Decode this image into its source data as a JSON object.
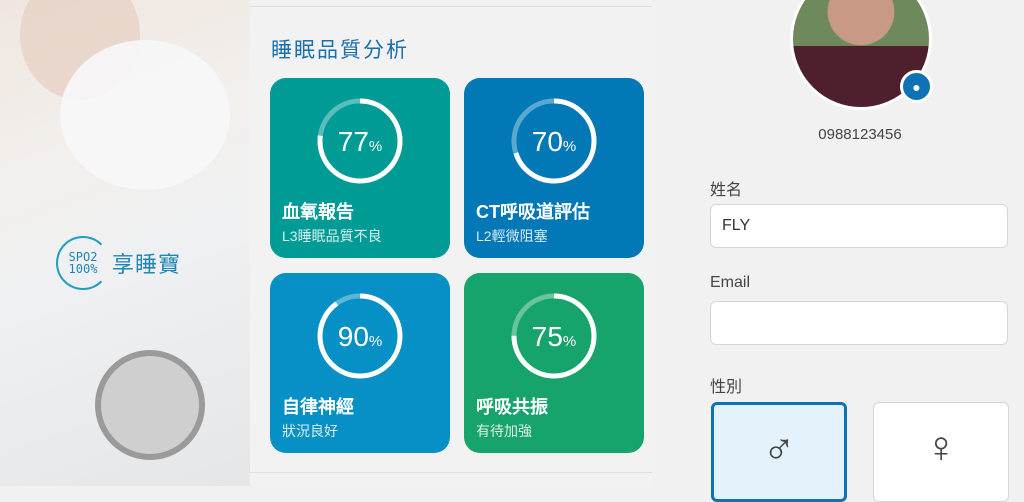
{
  "brand": {
    "logo_line1": "SPO2",
    "logo_line2": "100%",
    "name": "享睡寶"
  },
  "analysis": {
    "title": "睡眠品質分析",
    "cards": [
      {
        "percent": 77,
        "unit": "%",
        "name": "血氧報告",
        "status": "L3睡眠品質不良",
        "color": "#009b95"
      },
      {
        "percent": 70,
        "unit": "%",
        "name": "CT呼吸道評估",
        "status": "L2輕微阻塞",
        "color": "#0278b7"
      },
      {
        "percent": 90,
        "unit": "%",
        "name": "自律神經",
        "status": "狀況良好",
        "color": "#0790c5"
      },
      {
        "percent": 75,
        "unit": "%",
        "name": "呼吸共振",
        "status": "有待加強",
        "color": "#17a46c"
      }
    ]
  },
  "profile": {
    "phone": "0988123456",
    "name_label": "姓名",
    "name_value": "FLY",
    "email_label": "Email",
    "email_value": "",
    "gender_label": "性別",
    "gender_options": [
      {
        "symbol": "♂",
        "selected": true
      },
      {
        "symbol": "♀",
        "selected": false
      }
    ],
    "accent": "#0f72b4"
  }
}
